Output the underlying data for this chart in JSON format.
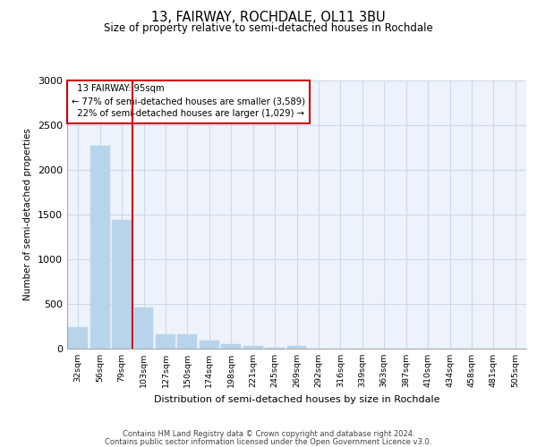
{
  "title_line1": "13, FAIRWAY, ROCHDALE, OL11 3BU",
  "title_line2": "Size of property relative to semi-detached houses in Rochdale",
  "xlabel": "Distribution of semi-detached houses by size in Rochdale",
  "ylabel": "Number of semi-detached properties",
  "footer_line1": "Contains HM Land Registry data © Crown copyright and database right 2024.",
  "footer_line2": "Contains public sector information licensed under the Open Government Licence v3.0.",
  "categories": [
    "32sqm",
    "56sqm",
    "79sqm",
    "103sqm",
    "127sqm",
    "150sqm",
    "174sqm",
    "198sqm",
    "221sqm",
    "245sqm",
    "269sqm",
    "292sqm",
    "316sqm",
    "339sqm",
    "363sqm",
    "387sqm",
    "410sqm",
    "434sqm",
    "458sqm",
    "481sqm",
    "505sqm"
  ],
  "values": [
    240,
    2270,
    1440,
    460,
    165,
    165,
    90,
    55,
    30,
    15,
    30,
    0,
    0,
    0,
    0,
    0,
    0,
    0,
    0,
    0,
    0
  ],
  "bar_color": "#b8d4ea",
  "bar_edge_color": "#b8d4ea",
  "property_label": "13 FAIRWAY: 95sqm",
  "pct_smaller": 77,
  "num_smaller": 3589,
  "pct_larger": 22,
  "num_larger": 1029,
  "vline_color": "#cc0000",
  "annotation_box_edge_color": "#cc0000",
  "grid_color": "#ccd8ec",
  "background_color": "#eef2fa",
  "ylim": [
    0,
    3000
  ],
  "yticks": [
    0,
    500,
    1000,
    1500,
    2000,
    2500,
    3000
  ],
  "vline_x_index": 2.5
}
